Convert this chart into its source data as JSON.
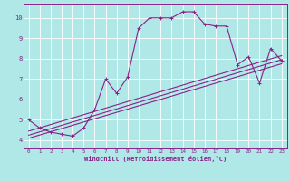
{
  "xlabel": "Windchill (Refroidissement éolien,°C)",
  "bg_color": "#b0e8e8",
  "grid_color": "#ffffff",
  "line_color": "#882288",
  "xlim": [
    -0.5,
    23.5
  ],
  "ylim": [
    3.6,
    10.7
  ],
  "xticks": [
    0,
    1,
    2,
    3,
    4,
    5,
    6,
    7,
    8,
    9,
    10,
    11,
    12,
    13,
    14,
    15,
    16,
    17,
    18,
    19,
    20,
    21,
    22,
    23
  ],
  "yticks": [
    4,
    5,
    6,
    7,
    8,
    9,
    10
  ],
  "series1_x": [
    0,
    1,
    2,
    3,
    4,
    5,
    6,
    7,
    8,
    9,
    10,
    11,
    12,
    13,
    14,
    15,
    16,
    17,
    18,
    19,
    20,
    21,
    22,
    23
  ],
  "series1_y": [
    5.0,
    4.6,
    4.4,
    4.3,
    4.2,
    4.6,
    5.5,
    7.0,
    6.3,
    7.1,
    9.5,
    10.0,
    10.0,
    10.0,
    10.3,
    10.3,
    9.7,
    9.6,
    9.6,
    7.7,
    8.1,
    6.8,
    8.5,
    7.9
  ],
  "line2": [
    [
      0,
      23
    ],
    [
      4.1,
      7.75
    ]
  ],
  "line3": [
    [
      0,
      23
    ],
    [
      4.25,
      7.95
    ]
  ],
  "line4": [
    [
      0,
      23
    ],
    [
      4.45,
      8.15
    ]
  ]
}
